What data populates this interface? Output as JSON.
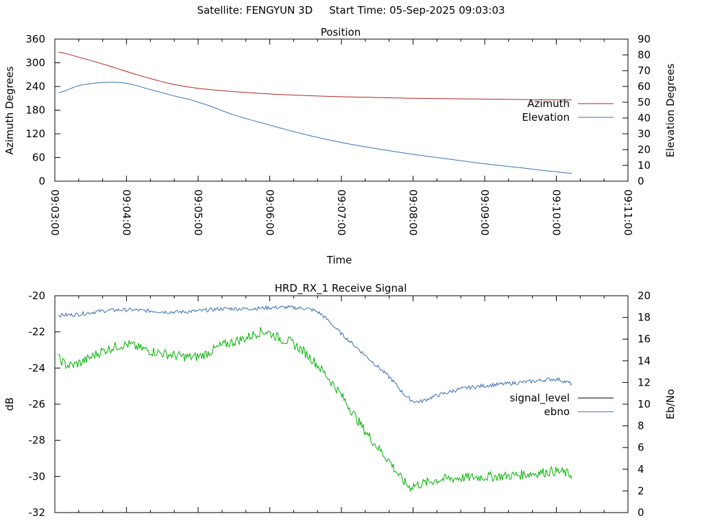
{
  "header": {
    "satellite_label": "Satellite: FENGYUN 3D",
    "start_time_label": "Start Time: 05-Sep-2025 09:03:03"
  },
  "chart_data": [
    {
      "type": "line",
      "title": "Position",
      "xlabel": "Time",
      "ylabel": "Azimuth Degrees",
      "y2label": "Elevation Degrees",
      "x_ticks": [
        "09:03:00",
        "09:04:00",
        "09:05:00",
        "09:06:00",
        "09:07:00",
        "09:08:00",
        "09:09:00",
        "09:10:00",
        "09:11:00"
      ],
      "xlim": [
        "09:03:00",
        "09:11:00"
      ],
      "ylim": [
        0,
        360
      ],
      "y_ticks": [
        0,
        60,
        120,
        180,
        240,
        300,
        360
      ],
      "y2lim": [
        0,
        90
      ],
      "y2_ticks": [
        0,
        10,
        20,
        30,
        40,
        50,
        60,
        70,
        80,
        90
      ],
      "legend_position": "right",
      "series": [
        {
          "name": "Azimuth",
          "axis": "y",
          "color": "#b22222",
          "x": [
            "09:03:03",
            "09:03:20",
            "09:03:40",
            "09:04:00",
            "09:04:20",
            "09:04:40",
            "09:05:00",
            "09:05:30",
            "09:06:00",
            "09:06:30",
            "09:07:00",
            "09:07:30",
            "09:08:00",
            "09:08:30",
            "09:09:00",
            "09:09:30",
            "09:10:00",
            "09:10:13"
          ],
          "values": [
            327,
            314,
            297,
            278,
            260,
            245,
            235,
            227,
            221,
            217,
            214,
            212,
            210,
            209,
            208,
            207,
            206,
            206
          ]
        },
        {
          "name": "Elevation",
          "axis": "y2",
          "color": "#3a6fb0",
          "x": [
            "09:03:03",
            "09:03:20",
            "09:03:40",
            "09:04:00",
            "09:04:20",
            "09:04:40",
            "09:05:00",
            "09:05:30",
            "09:06:00",
            "09:06:30",
            "09:07:00",
            "09:07:30",
            "09:08:00",
            "09:08:30",
            "09:09:00",
            "09:09:30",
            "09:10:00",
            "09:10:13"
          ],
          "values": [
            56,
            60.5,
            62.5,
            62,
            58,
            54,
            50,
            42,
            35.5,
            29.5,
            24.5,
            20.5,
            17,
            14,
            11,
            8.5,
            6,
            5
          ]
        }
      ]
    },
    {
      "type": "line",
      "title": "HRD_RX_1 Receive Signal",
      "xlabel": "",
      "ylabel": "dB",
      "y2label": "Eb/No",
      "xlim": [
        "09:03:00",
        "09:11:00"
      ],
      "ylim": [
        -32,
        -20
      ],
      "y_ticks": [
        -32,
        -30,
        -28,
        -26,
        -24,
        -22,
        -20
      ],
      "y2lim": [
        0,
        20
      ],
      "y2_ticks": [
        0,
        2,
        4,
        6,
        8,
        10,
        12,
        14,
        16,
        18,
        20
      ],
      "legend_position": "right",
      "series": [
        {
          "name": "signal_level",
          "axis": "y",
          "color": "#000000",
          "x": [],
          "values": []
        },
        {
          "name": "ebno",
          "axis": "y2",
          "color": "#3a6fb0",
          "x": [
            "09:03:03",
            "09:03:20",
            "09:03:40",
            "09:04:00",
            "09:04:20",
            "09:04:40",
            "09:05:00",
            "09:05:20",
            "09:05:40",
            "09:06:00",
            "09:06:20",
            "09:06:40",
            "09:07:00",
            "09:07:20",
            "09:07:40",
            "09:08:00",
            "09:08:20",
            "09:08:40",
            "09:09:00",
            "09:09:20",
            "09:09:40",
            "09:10:00",
            "09:10:13"
          ],
          "values": [
            18.2,
            18.3,
            18.6,
            18.7,
            18.6,
            18.5,
            18.6,
            18.8,
            18.8,
            18.9,
            18.9,
            18.5,
            16.5,
            14.5,
            12.5,
            10.3,
            10.8,
            11.4,
            11.7,
            11.9,
            12.1,
            12.3,
            11.9
          ]
        },
        {
          "name": "",
          "axis": "y2",
          "color": "#00b000",
          "x": [
            "09:03:03",
            "09:03:10",
            "09:03:20",
            "09:03:40",
            "09:04:00",
            "09:04:10",
            "09:04:20",
            "09:04:40",
            "09:05:00",
            "09:05:20",
            "09:05:40",
            "09:05:55",
            "09:06:10",
            "09:06:20",
            "09:06:40",
            "09:07:00",
            "09:07:20",
            "09:07:40",
            "09:07:55",
            "09:08:00",
            "09:08:20",
            "09:08:40",
            "09:09:00",
            "09:09:20",
            "09:09:40",
            "09:10:00",
            "09:10:13"
          ],
          "values": [
            14.2,
            13.6,
            13.8,
            14.9,
            15.5,
            15.2,
            14.9,
            14.5,
            14.4,
            15.4,
            16.1,
            16.7,
            16.0,
            15.5,
            13.6,
            10.8,
            7.5,
            4.8,
            2.6,
            2.5,
            3.0,
            3.2,
            3.3,
            3.4,
            3.6,
            3.8,
            3.5
          ]
        }
      ]
    }
  ]
}
